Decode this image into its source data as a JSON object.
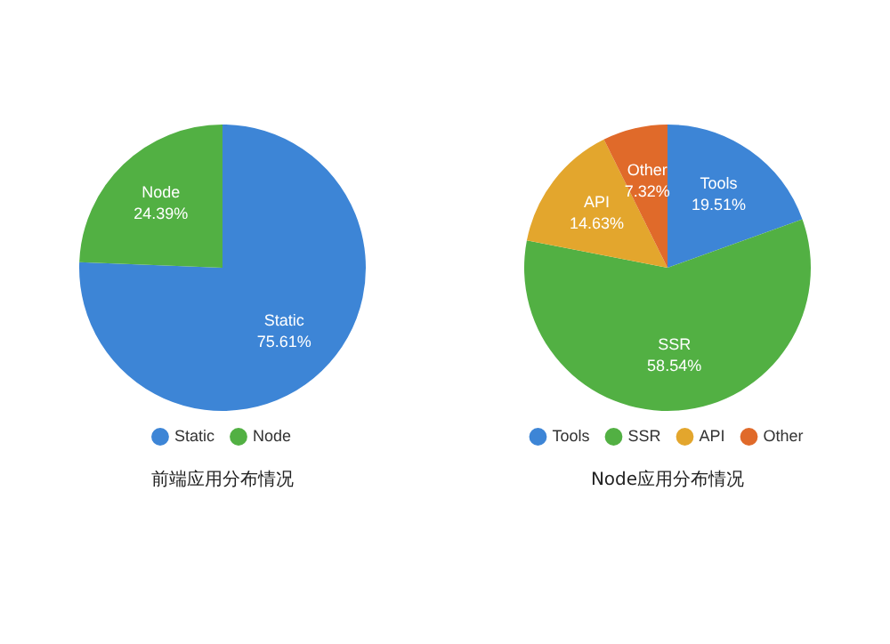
{
  "chart_data": [
    {
      "type": "pie",
      "title": "前端应用分布情况",
      "categories": [
        "Static",
        "Node"
      ],
      "values": [
        75.61,
        24.39
      ],
      "value_labels": [
        "75.61%",
        "24.39%"
      ],
      "colors": [
        "#3d85d6",
        "#52b043"
      ],
      "legend": "bottom"
    },
    {
      "type": "pie",
      "title": "Node应用分布情况",
      "categories": [
        "Tools",
        "SSR",
        "API",
        "Other"
      ],
      "values": [
        19.51,
        58.54,
        14.63,
        7.32
      ],
      "value_labels": [
        "19.51%",
        "58.54%",
        "14.63%",
        "7.32%"
      ],
      "colors": [
        "#3d85d6",
        "#52b043",
        "#e3a62d",
        "#e06a2a"
      ],
      "legend": "bottom"
    }
  ]
}
